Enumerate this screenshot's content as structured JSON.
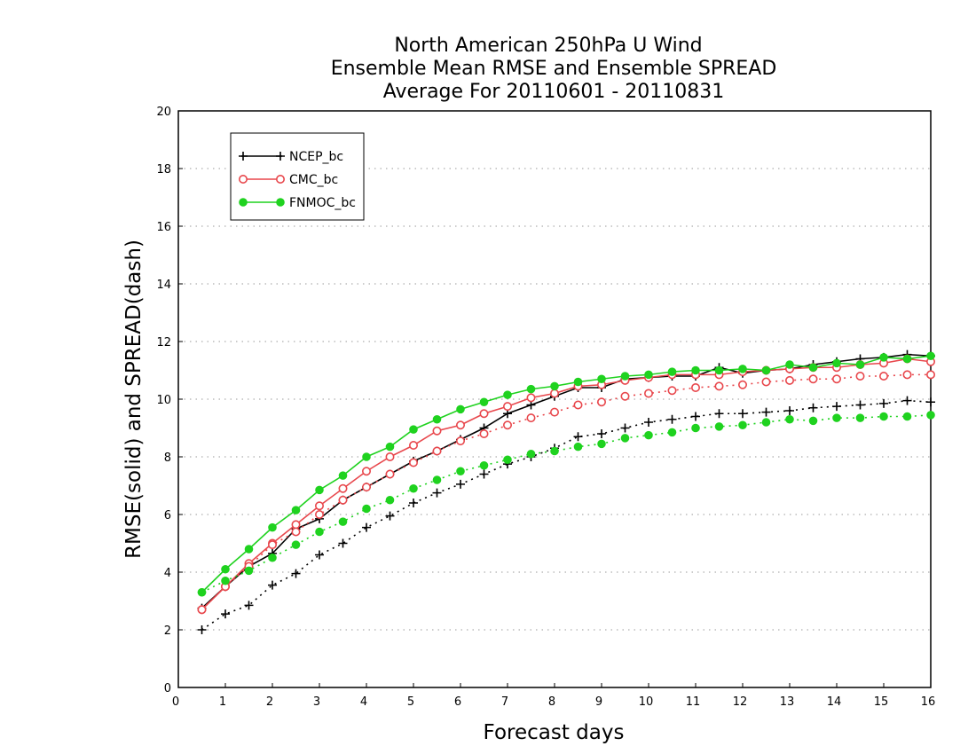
{
  "chart_data": {
    "type": "line",
    "title": [
      "North American 250hPa U Wind",
      "Ensemble Mean RMSE and Ensemble SPREAD",
      "Average For 20110601 - 20110831"
    ],
    "xlabel": "Forecast days",
    "ylabel": "RMSE(solid) and SPREAD(dash)",
    "xlim": [
      0,
      16
    ],
    "ylim": [
      0,
      20
    ],
    "xticks": [
      0,
      1,
      2,
      3,
      4,
      5,
      6,
      7,
      8,
      9,
      10,
      11,
      12,
      13,
      14,
      15,
      16
    ],
    "yticks": [
      0,
      2,
      4,
      6,
      8,
      10,
      12,
      14,
      16,
      18,
      20
    ],
    "grid": "horizontal-dotted",
    "legend_position": "top-left",
    "x": [
      0.5,
      1,
      1.5,
      2,
      2.5,
      3,
      3.5,
      4,
      4.5,
      5,
      5.5,
      6,
      6.5,
      7,
      7.5,
      8,
      8.5,
      9,
      9.5,
      10,
      10.5,
      11,
      11.5,
      12,
      12.5,
      13,
      13.5,
      14,
      14.5,
      15,
      15.5,
      16
    ],
    "series": [
      {
        "name": "NCEP_bc",
        "color": "#000000",
        "marker": "plus",
        "rmse": [
          2.75,
          3.5,
          4.2,
          4.65,
          5.5,
          5.85,
          6.5,
          6.95,
          7.4,
          7.85,
          8.2,
          8.6,
          9.0,
          9.5,
          9.8,
          10.1,
          10.4,
          10.4,
          10.7,
          10.75,
          10.8,
          10.8,
          11.1,
          10.9,
          11.0,
          11.05,
          11.2,
          11.3,
          11.4,
          11.45,
          11.55,
          11.5
        ],
        "spread": [
          2.0,
          2.55,
          2.85,
          3.55,
          3.95,
          4.6,
          5.0,
          5.55,
          5.95,
          6.4,
          6.75,
          7.05,
          7.4,
          7.75,
          8.0,
          8.3,
          8.7,
          8.8,
          9.0,
          9.2,
          9.3,
          9.4,
          9.5,
          9.5,
          9.55,
          9.6,
          9.7,
          9.75,
          9.8,
          9.85,
          9.95,
          9.9
        ]
      },
      {
        "name": "CMC_bc",
        "color": "#e8474c",
        "marker": "open-circle",
        "rmse": [
          2.7,
          3.5,
          4.3,
          5.0,
          5.65,
          6.3,
          6.9,
          7.5,
          8.0,
          8.4,
          8.9,
          9.1,
          9.5,
          9.75,
          10.05,
          10.2,
          10.45,
          10.5,
          10.65,
          10.75,
          10.85,
          10.85,
          10.85,
          10.95,
          11.0,
          11.05,
          11.1,
          11.1,
          11.2,
          11.25,
          11.4,
          11.3
        ],
        "spread": [
          2.7,
          3.5,
          4.2,
          4.95,
          5.4,
          6.0,
          6.5,
          6.95,
          7.4,
          7.8,
          8.2,
          8.55,
          8.8,
          9.1,
          9.35,
          9.55,
          9.8,
          9.9,
          10.1,
          10.2,
          10.3,
          10.4,
          10.45,
          10.5,
          10.6,
          10.65,
          10.7,
          10.7,
          10.8,
          10.8,
          10.85,
          10.85
        ]
      },
      {
        "name": "FNMOC_bc",
        "color": "#1fd21f",
        "marker": "filled-circle",
        "rmse": [
          3.3,
          4.1,
          4.8,
          5.55,
          6.15,
          6.85,
          7.35,
          8.0,
          8.35,
          8.95,
          9.3,
          9.65,
          9.9,
          10.15,
          10.35,
          10.45,
          10.6,
          10.7,
          10.8,
          10.85,
          10.95,
          11.0,
          11.0,
          11.05,
          11.0,
          11.2,
          11.1,
          11.25,
          11.2,
          11.45,
          11.4,
          11.5
        ],
        "spread": [
          3.3,
          3.7,
          4.05,
          4.5,
          4.95,
          5.4,
          5.75,
          6.2,
          6.5,
          6.9,
          7.2,
          7.5,
          7.7,
          7.9,
          8.1,
          8.2,
          8.35,
          8.45,
          8.65,
          8.75,
          8.85,
          9.0,
          9.05,
          9.1,
          9.2,
          9.3,
          9.25,
          9.35,
          9.35,
          9.4,
          9.4,
          9.45
        ]
      }
    ]
  }
}
